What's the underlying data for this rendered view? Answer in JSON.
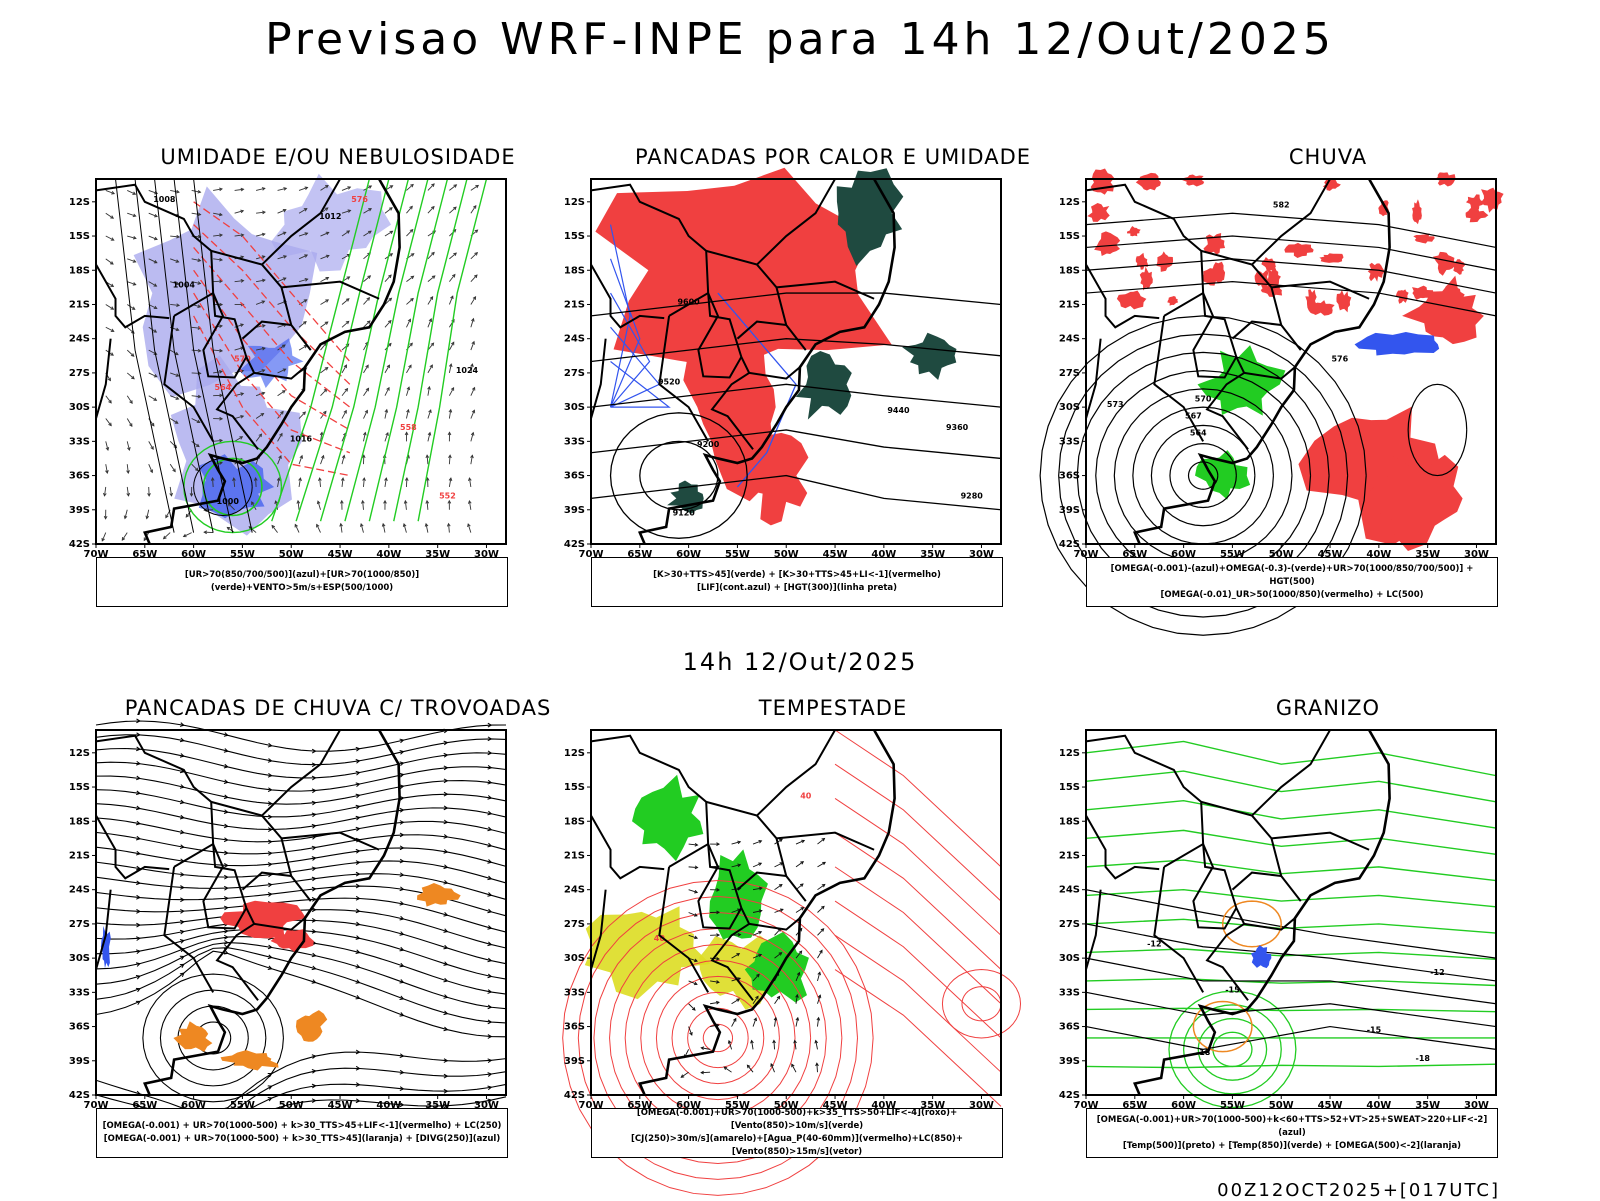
{
  "header": {
    "title": "Previsao WRF-INPE  para 14h 12/Out/2025"
  },
  "middle": {
    "title": "14h 12/Out/2025"
  },
  "footer": {
    "stamp": "00Z12OCT2025+[017UTC]"
  },
  "colors": {
    "red": "#f04040",
    "green": "#22cc22",
    "blue": "#3355ee",
    "lavender": "#aaaaee",
    "orange": "#ee8822",
    "yellow": "#dddd22",
    "darkgreen": "#1f4a40",
    "black": "#000000"
  },
  "chart_data": [
    {
      "type": "map",
      "title": "UMIDADE E/OU NEBULOSIDADE",
      "legend": [
        "[UR>70(850/700/500)](azul)+[UR>70(1000/850)](verde)+VENTO>5m/s+ESP(500/1000)"
      ],
      "xticks": [
        "70W",
        "65W",
        "60W",
        "55W",
        "50W",
        "45W",
        "40W",
        "35W",
        "30W"
      ],
      "yticks": [
        "12S",
        "15S",
        "18S",
        "21S",
        "24S",
        "27S",
        "30S",
        "33S",
        "36S",
        "39S",
        "42S"
      ],
      "xlim": [
        -70,
        -28
      ],
      "ylim": [
        -42,
        -10
      ],
      "contour_labels": [
        "1008",
        "1012",
        "1004",
        "1000",
        "1016",
        "1024",
        "576",
        "570",
        "564",
        "558",
        "552"
      ]
    },
    {
      "type": "map",
      "title": "PANCADAS POR CALOR E UMIDADE",
      "legend": [
        "[K>30+TTS>45](verde) + [K>30+TTS>45+LI<-1](vermelho)",
        "[LIF](cont.azul) + [HGT(300)](linha preta)"
      ],
      "xticks": [
        "70W",
        "65W",
        "60W",
        "55W",
        "50W",
        "45W",
        "40W",
        "35W",
        "30W"
      ],
      "yticks": [
        "12S",
        "15S",
        "18S",
        "21S",
        "24S",
        "27S",
        "30S",
        "33S",
        "36S",
        "39S",
        "42S"
      ],
      "xlim": [
        -70,
        -28
      ],
      "ylim": [
        -42,
        -10
      ],
      "contour_labels": [
        "9600",
        "9520",
        "9440",
        "9360",
        "9280",
        "9200",
        "9120"
      ]
    },
    {
      "type": "map",
      "title": "CHUVA",
      "legend": [
        "[OMEGA(-0.001)-(azul)+OMEGA(-0.3)-(verde)+UR>70(1000/850/700/500)] + HGT(500)",
        "[OMEGA(-0.01)_UR>50(1000/850)(vermelho) + LC(500)"
      ],
      "xticks": [
        "70W",
        "65W",
        "60W",
        "55W",
        "50W",
        "45W",
        "40W",
        "35W",
        "30W"
      ],
      "yticks": [
        "12S",
        "15S",
        "18S",
        "21S",
        "24S",
        "27S",
        "30S",
        "33S",
        "36S",
        "39S",
        "42S"
      ],
      "xlim": [
        -70,
        -28
      ],
      "ylim": [
        -42,
        -10
      ],
      "contour_labels": [
        "582",
        "576",
        "573",
        "570",
        "567",
        "564"
      ]
    },
    {
      "type": "map",
      "title": "PANCADAS DE CHUVA C/ TROVOADAS",
      "legend": [
        "[OMEGA(-0.001) + UR>70(1000-500) + k>30_TTS>45+LIF<-1](vermelho) + LC(250)",
        "[OMEGA(-0.001) + UR>70(1000-500) + k>30_TTS>45](laranja) + [DIVG(250)](azul)"
      ],
      "xticks": [
        "70W",
        "65W",
        "60W",
        "55W",
        "50W",
        "45W",
        "40W",
        "35W",
        "30W"
      ],
      "yticks": [
        "12S",
        "15S",
        "18S",
        "21S",
        "24S",
        "27S",
        "30S",
        "33S",
        "36S",
        "39S",
        "42S"
      ],
      "xlim": [
        -70,
        -28
      ],
      "ylim": [
        -42,
        -10
      ],
      "contour_labels": []
    },
    {
      "type": "map",
      "title": "TEMPESTADE",
      "legend": [
        "[OMEGA(-0.001)+UR>70(1000-500)+k>35_TTS>50+LIF<-4](roxo)+[Vento(850)>10m/s](verde)",
        "[CJ(250)>30m/s](amarelo)+[Agua_P(40-60mm)](vermelho)+LC(850)+[Vento(850)>15m/s](vetor)"
      ],
      "xticks": [
        "70W",
        "65W",
        "60W",
        "55W",
        "50W",
        "45W",
        "40W",
        "35W",
        "30W"
      ],
      "yticks": [
        "12S",
        "15S",
        "18S",
        "21S",
        "24S",
        "27S",
        "30S",
        "33S",
        "36S",
        "39S",
        "42S"
      ],
      "xlim": [
        -70,
        -28
      ],
      "ylim": [
        -42,
        -10
      ],
      "contour_labels": [
        "40",
        "40"
      ]
    },
    {
      "type": "map",
      "title": "GRANIZO",
      "legend": [
        "[OMEGA(-0.001)+UR>70(1000-500)+k<60+TTS>52+VT>25+SWEAT>220+LIF<-2](azul)",
        "[Temp(500)](preto) + [Temp(850)](verde) + [OMEGA(500)<-2](laranja)"
      ],
      "xticks": [
        "70W",
        "65W",
        "60W",
        "55W",
        "50W",
        "45W",
        "40W",
        "35W",
        "30W"
      ],
      "yticks": [
        "12S",
        "15S",
        "18S",
        "21S",
        "24S",
        "27S",
        "30S",
        "33S",
        "36S",
        "39S",
        "42S"
      ],
      "xlim": [
        -70,
        -28
      ],
      "ylim": [
        -42,
        -10
      ],
      "contour_labels": [
        "-12",
        "-15",
        "-18",
        "-15",
        "-18",
        "-12"
      ]
    }
  ]
}
